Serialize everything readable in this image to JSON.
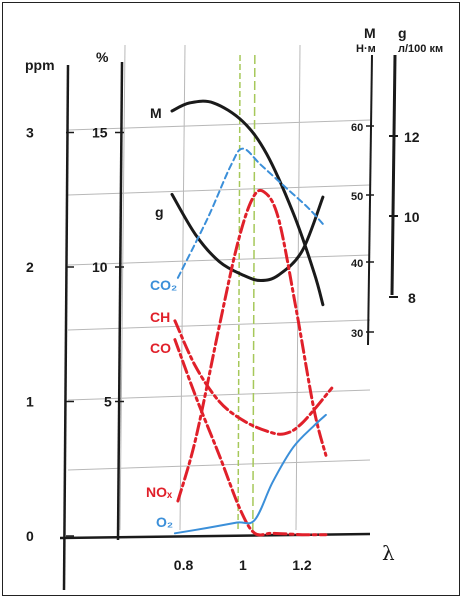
{
  "chart_data": {
    "type": "line",
    "x": {
      "tick_labels": [
        "0.8",
        "1",
        "1.2"
      ],
      "ticks": [
        0.8,
        1.0,
        1.2
      ],
      "label": "λ",
      "range": [
        0.7,
        1.35
      ]
    },
    "axes": {
      "ppm": {
        "label": "ppm",
        "ticks": [
          "0",
          "1",
          "2",
          "3"
        ],
        "range": [
          0,
          3.8
        ]
      },
      "percent": {
        "label": "%",
        "ticks": [
          "5",
          "10",
          "15"
        ],
        "range": [
          0,
          19
        ]
      },
      "M": {
        "label": "M",
        "unit": "Н·м",
        "ticks": [
          "30",
          "40",
          "50",
          "60"
        ]
      },
      "g": {
        "label": "g",
        "unit": "л/100 км",
        "ticks": [
          "8",
          "10",
          "12"
        ]
      }
    },
    "series": [
      {
        "name": "M",
        "color": "#1a1a1a",
        "style": "solid",
        "points": [
          [
            0.76,
            15.8
          ],
          [
            0.82,
            16.1
          ],
          [
            0.9,
            16.1
          ],
          [
            1.0,
            15.4
          ],
          [
            1.08,
            14.2
          ],
          [
            1.17,
            12.0
          ],
          [
            1.24,
            9.8
          ],
          [
            1.27,
            8.6
          ]
        ]
      },
      {
        "name": "g",
        "color": "#1a1a1a",
        "style": "solid",
        "points": [
          [
            0.76,
            12.7
          ],
          [
            0.84,
            11.2
          ],
          [
            0.92,
            10.2
          ],
          [
            1.0,
            9.7
          ],
          [
            1.06,
            9.5
          ],
          [
            1.12,
            9.7
          ],
          [
            1.2,
            10.6
          ],
          [
            1.27,
            12.6
          ]
        ]
      },
      {
        "name": "CO₂",
        "color": "#3b8fd9",
        "style": "dashed",
        "points": [
          [
            0.78,
            9.6
          ],
          [
            0.88,
            11.8
          ],
          [
            0.96,
            13.8
          ],
          [
            1.0,
            14.4
          ],
          [
            1.06,
            13.8
          ],
          [
            1.14,
            13.0
          ],
          [
            1.22,
            12.2
          ],
          [
            1.27,
            11.6
          ]
        ]
      },
      {
        "name": "CH",
        "color": "#e0202a",
        "style": "dashdot",
        "points": [
          [
            0.77,
            8.0
          ],
          [
            0.84,
            6.3
          ],
          [
            0.92,
            5.0
          ],
          [
            1.0,
            4.3
          ],
          [
            1.08,
            3.9
          ],
          [
            1.14,
            3.8
          ],
          [
            1.2,
            4.2
          ],
          [
            1.3,
            5.5
          ]
        ]
      },
      {
        "name": "CO",
        "color": "#e0202a",
        "style": "dashdot",
        "points": [
          [
            0.77,
            7.3
          ],
          [
            0.84,
            5.2
          ],
          [
            0.92,
            3.0
          ],
          [
            0.99,
            1.0
          ],
          [
            1.04,
            0.1
          ],
          [
            1.1,
            0.1
          ],
          [
            1.2,
            0.05
          ],
          [
            1.28,
            0.05
          ]
        ]
      },
      {
        "name": "NOₓ",
        "color": "#e0202a",
        "style": "dashdot",
        "points": [
          [
            0.78,
            1.3
          ],
          [
            0.84,
            3.6
          ],
          [
            0.92,
            7.8
          ],
          [
            0.98,
            10.8
          ],
          [
            1.03,
            12.5
          ],
          [
            1.07,
            12.8
          ],
          [
            1.12,
            11.8
          ],
          [
            1.18,
            8.4
          ],
          [
            1.24,
            4.7
          ],
          [
            1.28,
            3.0
          ]
        ]
      },
      {
        "name": "O₂",
        "color": "#3b8fd9",
        "style": "solid",
        "points": [
          [
            0.77,
            0.1
          ],
          [
            0.88,
            0.3
          ],
          [
            0.98,
            0.5
          ],
          [
            1.04,
            0.6
          ],
          [
            1.1,
            2.0
          ],
          [
            1.17,
            3.3
          ],
          [
            1.24,
            4.1
          ],
          [
            1.28,
            4.5
          ]
        ]
      }
    ],
    "reference_lines": {
      "color": "#a6c85a",
      "x": [
        0.99,
        1.04
      ]
    },
    "grid": true
  }
}
